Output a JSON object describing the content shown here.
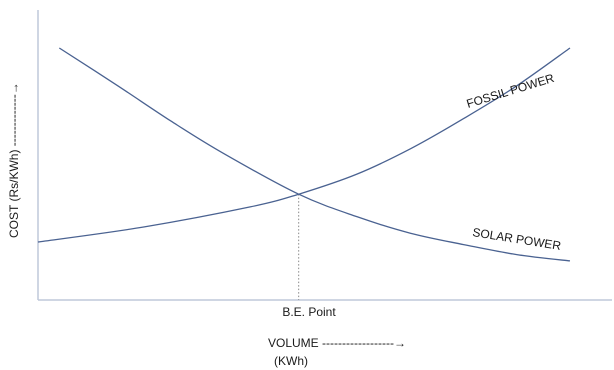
{
  "chart_data": {
    "type": "line",
    "title": "",
    "xlabel": "VOLUME ------------------→",
    "xlabel_unit": "(KWh)",
    "ylabel": "COST (Rs/KWh) -------------→",
    "x_tick_label": "B.E. Point",
    "grid": false,
    "legend": "none",
    "ticks_shown": false,
    "x_range": [
      0,
      10
    ],
    "y_range": [
      0,
      10
    ],
    "break_even": {
      "x": 4.9,
      "y": 4.2
    },
    "series": [
      {
        "name": "FOSSIL POWER",
        "color": "#4a6291",
        "x": [
          0,
          2,
          4,
          4.9,
          6,
          7,
          8,
          9,
          10
        ],
        "y": [
          2.3,
          2.9,
          3.7,
          4.2,
          5.0,
          6.0,
          7.2,
          8.5,
          10.0
        ]
      },
      {
        "name": "SOLAR POWER",
        "color": "#4a6291",
        "x": [
          0.4,
          1.5,
          2.5,
          3.5,
          4.9,
          6,
          7,
          8,
          9,
          10
        ],
        "y": [
          10.0,
          8.5,
          7.1,
          5.8,
          4.2,
          3.3,
          2.65,
          2.2,
          1.8,
          1.55
        ]
      }
    ]
  }
}
